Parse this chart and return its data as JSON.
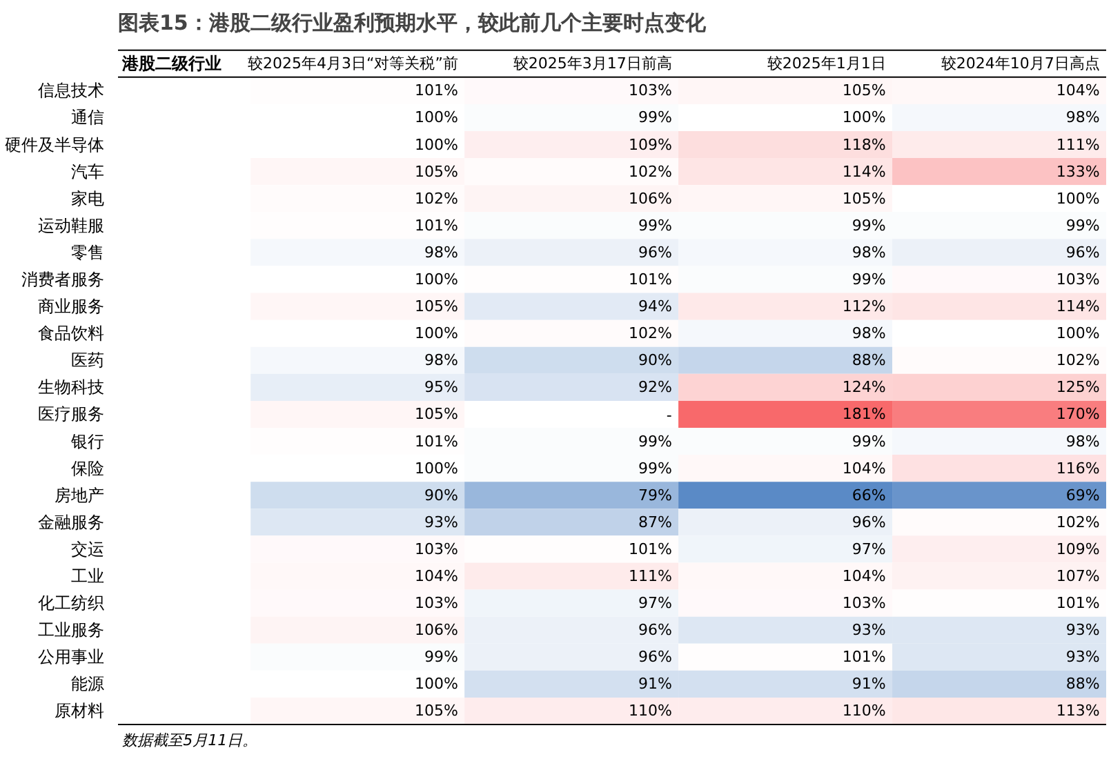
{
  "chart_data": {
    "type": "heatmap",
    "title": "图表15：港股二级行业盈利预期水平，较此前几个主要时点变化",
    "categories": [
      "较2025年4月3日“对等关税”前",
      "较2025年3月17日前高",
      "较2025年1月1日",
      "较2024年10月7日高点"
    ],
    "y_categories": [
      "信息技术",
      "通信",
      "硬件及半导体",
      "汽车",
      "家电",
      "运动鞋服",
      "零售",
      "消费者服务",
      "商业服务",
      "食品饮料",
      "医药",
      "生物科技",
      "医疗服务",
      "银行",
      "保险",
      "房地产",
      "金融服务",
      "交运",
      "工业",
      "化工纺织",
      "工业服务",
      "公用事业",
      "能源",
      "原材料"
    ],
    "cells": [
      [
        101,
        103,
        105,
        104
      ],
      [
        100,
        99,
        100,
        98
      ],
      [
        100,
        109,
        118,
        111
      ],
      [
        105,
        102,
        114,
        133
      ],
      [
        102,
        106,
        105,
        100
      ],
      [
        101,
        99,
        99,
        99
      ],
      [
        98,
        96,
        98,
        96
      ],
      [
        100,
        101,
        99,
        103
      ],
      [
        105,
        94,
        112,
        114
      ],
      [
        100,
        102,
        98,
        100
      ],
      [
        98,
        90,
        88,
        102
      ],
      [
        95,
        92,
        124,
        125
      ],
      [
        105,
        null,
        181,
        170
      ],
      [
        101,
        99,
        99,
        98
      ],
      [
        100,
        99,
        104,
        116
      ],
      [
        90,
        79,
        66,
        69
      ],
      [
        93,
        87,
        96,
        102
      ],
      [
        103,
        101,
        97,
        109
      ],
      [
        104,
        111,
        104,
        107
      ],
      [
        103,
        97,
        103,
        101
      ],
      [
        106,
        96,
        93,
        93
      ],
      [
        99,
        96,
        101,
        93
      ],
      [
        100,
        91,
        91,
        88
      ],
      [
        105,
        110,
        110,
        113
      ]
    ],
    "cell_labels": [
      [
        "101%",
        "103%",
        "105%",
        "104%"
      ],
      [
        "100%",
        "99%",
        "100%",
        "98%"
      ],
      [
        "100%",
        "109%",
        "118%",
        "111%"
      ],
      [
        "105%",
        "102%",
        "114%",
        "133%"
      ],
      [
        "102%",
        "106%",
        "105%",
        "100%"
      ],
      [
        "101%",
        "99%",
        "99%",
        "99%"
      ],
      [
        "98%",
        "96%",
        "98%",
        "96%"
      ],
      [
        "100%",
        "101%",
        "99%",
        "103%"
      ],
      [
        "105%",
        "94%",
        "112%",
        "114%"
      ],
      [
        "100%",
        "102%",
        "98%",
        "100%"
      ],
      [
        "98%",
        "90%",
        "88%",
        "102%"
      ],
      [
        "95%",
        "92%",
        "124%",
        "125%"
      ],
      [
        "105%",
        "-",
        "181%",
        "170%"
      ],
      [
        "101%",
        "99%",
        "99%",
        "98%"
      ],
      [
        "100%",
        "99%",
        "104%",
        "116%"
      ],
      [
        "90%",
        "79%",
        "66%",
        "69%"
      ],
      [
        "93%",
        "87%",
        "96%",
        "102%"
      ],
      [
        "103%",
        "101%",
        "97%",
        "109%"
      ],
      [
        "104%",
        "111%",
        "104%",
        "107%"
      ],
      [
        "103%",
        "97%",
        "103%",
        "101%"
      ],
      [
        "106%",
        "96%",
        "93%",
        "93%"
      ],
      [
        "99%",
        "96%",
        "101%",
        "93%"
      ],
      [
        "100%",
        "91%",
        "91%",
        "88%"
      ],
      [
        "105%",
        "110%",
        "110%",
        "113%"
      ]
    ],
    "annotations": [
      "港股二级行业",
      "数据截至5月11日。"
    ]
  }
}
